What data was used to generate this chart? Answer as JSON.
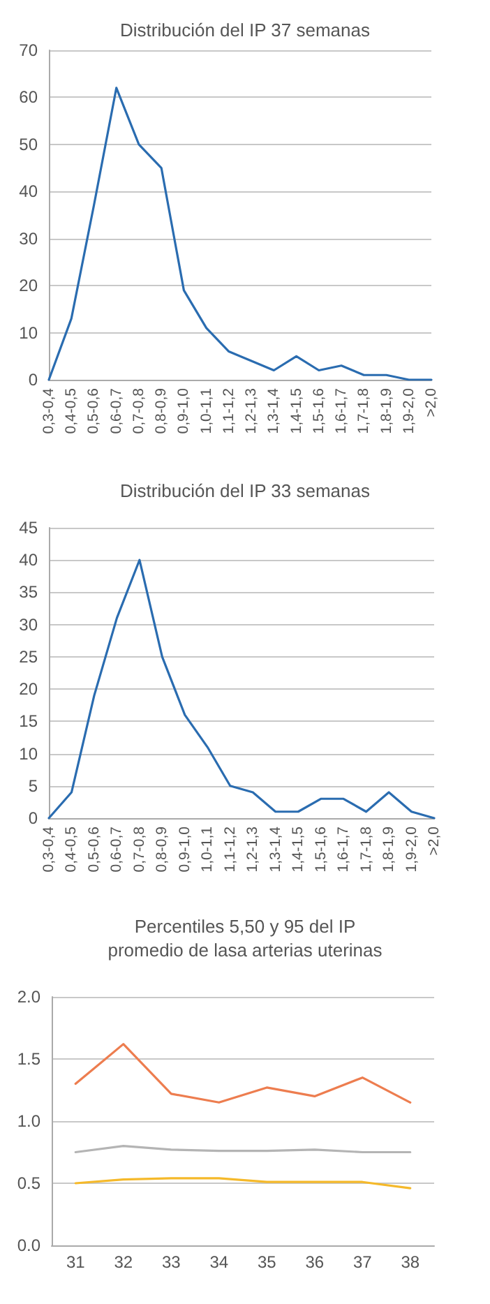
{
  "chart_data": [
    {
      "type": "line",
      "title": "Distribución del IP 37 semanas",
      "categories": [
        "0,3-0,4",
        "0,4-0,5",
        "0,5-0,6",
        "0,6-0,7",
        "0,7-0,8",
        "0,8-0,9",
        "0,9-1,0",
        "1,0-1,1",
        "1,1-1,2",
        "1,2-1,3",
        "1,3-1,4",
        "1,4-1,5",
        "1,5-1,6",
        "1,6-1,7",
        "1,7-1,8",
        "1,8-1,9",
        "1,9-2,0",
        ">2,0"
      ],
      "series": [
        {
          "color": "#2a6cb0",
          "values": [
            0,
            13,
            37,
            62,
            50,
            45,
            19,
            11,
            6,
            4,
            2,
            5,
            2,
            3,
            1,
            1,
            0,
            0
          ]
        }
      ],
      "ylim": [
        0,
        70
      ],
      "yticks": [
        0,
        10,
        20,
        30,
        40,
        50,
        60,
        70
      ],
      "grid": "y",
      "marker": "none",
      "line_style": "solid"
    },
    {
      "type": "line",
      "title": "Distribución del IP 33 semanas",
      "categories": [
        "0,3-0,4",
        "0,4-0,5",
        "0,5-0,6",
        "0,6-0,7",
        "0,7-0,8",
        "0,8-0,9",
        "0,9-1,0",
        "1,0-1,1",
        "1,1-1,2",
        "1,2-1,3",
        "1,3-1,4",
        "1,4-1,5",
        "1,5-1,6",
        "1,6-1,7",
        "1,7-1,8",
        "1,8-1,9",
        "1,9-2,0",
        ">2,0"
      ],
      "series": [
        {
          "color": "#2a6cb0",
          "values": [
            0,
            4,
            19,
            31,
            40,
            25,
            16,
            11,
            5,
            4,
            1,
            1,
            3,
            3,
            1,
            4,
            1,
            0
          ]
        }
      ],
      "ylim": [
        0,
        45
      ],
      "yticks": [
        0,
        5,
        10,
        15,
        20,
        25,
        30,
        35,
        40,
        45
      ],
      "grid": "y",
      "marker": "none",
      "line_style": "solid"
    },
    {
      "type": "line",
      "title": "Percentiles 5,50 y 95 del IP\npromedio de lasa arterias uterinas",
      "categories": [
        "31",
        "32",
        "33",
        "34",
        "35",
        "36",
        "37",
        "38"
      ],
      "series": [
        {
          "color": "#ed7d4f",
          "values": [
            1.3,
            1.62,
            1.22,
            1.15,
            1.27,
            1.2,
            1.35,
            1.15
          ]
        },
        {
          "color": "#b4b4b4",
          "values": [
            0.75,
            0.8,
            0.77,
            0.76,
            0.76,
            0.77,
            0.75,
            0.75
          ]
        },
        {
          "color": "#f5b92a",
          "values": [
            0.5,
            0.53,
            0.54,
            0.54,
            0.51,
            0.51,
            0.51,
            0.46
          ]
        }
      ],
      "ylim": [
        0,
        2
      ],
      "yticks": [
        {
          "value": 0,
          "label": "0.0"
        },
        {
          "value": 0.5,
          "label": "0.5"
        },
        {
          "value": 1,
          "label": "1.0"
        },
        {
          "value": 1.5,
          "label": "1.5"
        },
        {
          "value": 2,
          "label": "2.0"
        }
      ],
      "grid": "y",
      "marker": "none",
      "line_style": "solid"
    }
  ]
}
